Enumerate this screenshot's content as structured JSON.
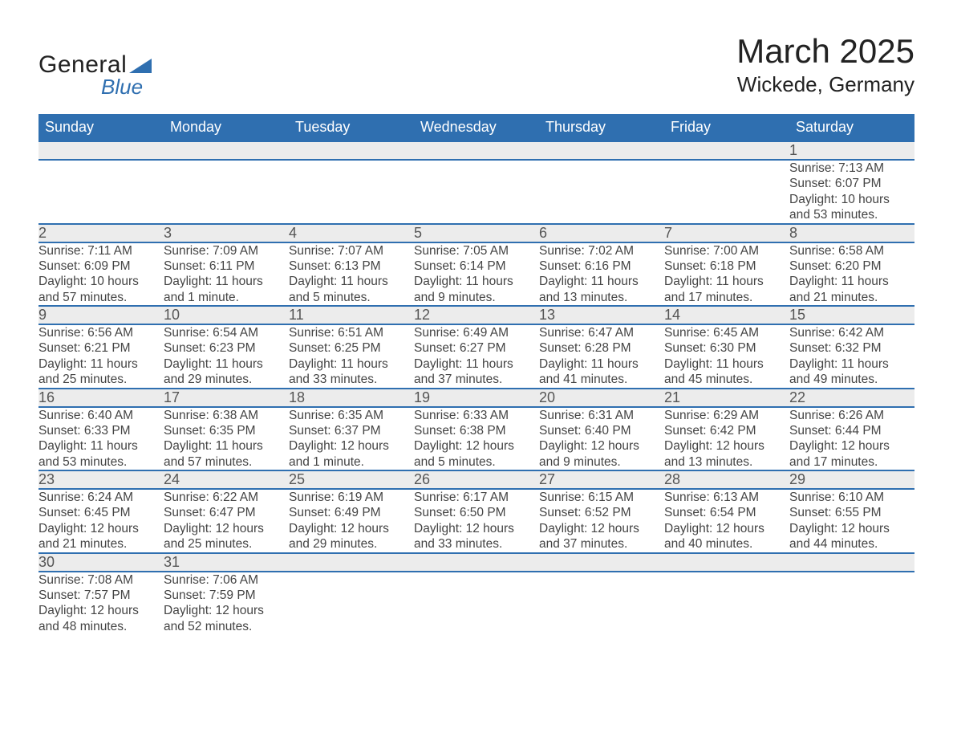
{
  "logo": {
    "line1": "General",
    "line2": "Blue",
    "triangle_color": "#2f6fb0"
  },
  "title": {
    "month": "March 2025",
    "location": "Wickede, Germany"
  },
  "colors": {
    "header_bg": "#2f6fb0",
    "header_fg": "#ffffff",
    "daynum_bg": "#ececec",
    "row_divider": "#2f6fb0",
    "text": "#444444"
  },
  "fonts": {
    "title_size": 42,
    "location_size": 26,
    "dayhead_size": 18,
    "daynum_size": 18,
    "detail_size": 15.5
  },
  "day_headers": [
    "Sunday",
    "Monday",
    "Tuesday",
    "Wednesday",
    "Thursday",
    "Friday",
    "Saturday"
  ],
  "weeks": [
    [
      null,
      null,
      null,
      null,
      null,
      null,
      {
        "n": "1",
        "sr": "Sunrise: 7:13 AM",
        "ss": "Sunset: 6:07 PM",
        "d1": "Daylight: 10 hours",
        "d2": "and 53 minutes."
      }
    ],
    [
      {
        "n": "2",
        "sr": "Sunrise: 7:11 AM",
        "ss": "Sunset: 6:09 PM",
        "d1": "Daylight: 10 hours",
        "d2": "and 57 minutes."
      },
      {
        "n": "3",
        "sr": "Sunrise: 7:09 AM",
        "ss": "Sunset: 6:11 PM",
        "d1": "Daylight: 11 hours",
        "d2": "and 1 minute."
      },
      {
        "n": "4",
        "sr": "Sunrise: 7:07 AM",
        "ss": "Sunset: 6:13 PM",
        "d1": "Daylight: 11 hours",
        "d2": "and 5 minutes."
      },
      {
        "n": "5",
        "sr": "Sunrise: 7:05 AM",
        "ss": "Sunset: 6:14 PM",
        "d1": "Daylight: 11 hours",
        "d2": "and 9 minutes."
      },
      {
        "n": "6",
        "sr": "Sunrise: 7:02 AM",
        "ss": "Sunset: 6:16 PM",
        "d1": "Daylight: 11 hours",
        "d2": "and 13 minutes."
      },
      {
        "n": "7",
        "sr": "Sunrise: 7:00 AM",
        "ss": "Sunset: 6:18 PM",
        "d1": "Daylight: 11 hours",
        "d2": "and 17 minutes."
      },
      {
        "n": "8",
        "sr": "Sunrise: 6:58 AM",
        "ss": "Sunset: 6:20 PM",
        "d1": "Daylight: 11 hours",
        "d2": "and 21 minutes."
      }
    ],
    [
      {
        "n": "9",
        "sr": "Sunrise: 6:56 AM",
        "ss": "Sunset: 6:21 PM",
        "d1": "Daylight: 11 hours",
        "d2": "and 25 minutes."
      },
      {
        "n": "10",
        "sr": "Sunrise: 6:54 AM",
        "ss": "Sunset: 6:23 PM",
        "d1": "Daylight: 11 hours",
        "d2": "and 29 minutes."
      },
      {
        "n": "11",
        "sr": "Sunrise: 6:51 AM",
        "ss": "Sunset: 6:25 PM",
        "d1": "Daylight: 11 hours",
        "d2": "and 33 minutes."
      },
      {
        "n": "12",
        "sr": "Sunrise: 6:49 AM",
        "ss": "Sunset: 6:27 PM",
        "d1": "Daylight: 11 hours",
        "d2": "and 37 minutes."
      },
      {
        "n": "13",
        "sr": "Sunrise: 6:47 AM",
        "ss": "Sunset: 6:28 PM",
        "d1": "Daylight: 11 hours",
        "d2": "and 41 minutes."
      },
      {
        "n": "14",
        "sr": "Sunrise: 6:45 AM",
        "ss": "Sunset: 6:30 PM",
        "d1": "Daylight: 11 hours",
        "d2": "and 45 minutes."
      },
      {
        "n": "15",
        "sr": "Sunrise: 6:42 AM",
        "ss": "Sunset: 6:32 PM",
        "d1": "Daylight: 11 hours",
        "d2": "and 49 minutes."
      }
    ],
    [
      {
        "n": "16",
        "sr": "Sunrise: 6:40 AM",
        "ss": "Sunset: 6:33 PM",
        "d1": "Daylight: 11 hours",
        "d2": "and 53 minutes."
      },
      {
        "n": "17",
        "sr": "Sunrise: 6:38 AM",
        "ss": "Sunset: 6:35 PM",
        "d1": "Daylight: 11 hours",
        "d2": "and 57 minutes."
      },
      {
        "n": "18",
        "sr": "Sunrise: 6:35 AM",
        "ss": "Sunset: 6:37 PM",
        "d1": "Daylight: 12 hours",
        "d2": "and 1 minute."
      },
      {
        "n": "19",
        "sr": "Sunrise: 6:33 AM",
        "ss": "Sunset: 6:38 PM",
        "d1": "Daylight: 12 hours",
        "d2": "and 5 minutes."
      },
      {
        "n": "20",
        "sr": "Sunrise: 6:31 AM",
        "ss": "Sunset: 6:40 PM",
        "d1": "Daylight: 12 hours",
        "d2": "and 9 minutes."
      },
      {
        "n": "21",
        "sr": "Sunrise: 6:29 AM",
        "ss": "Sunset: 6:42 PM",
        "d1": "Daylight: 12 hours",
        "d2": "and 13 minutes."
      },
      {
        "n": "22",
        "sr": "Sunrise: 6:26 AM",
        "ss": "Sunset: 6:44 PM",
        "d1": "Daylight: 12 hours",
        "d2": "and 17 minutes."
      }
    ],
    [
      {
        "n": "23",
        "sr": "Sunrise: 6:24 AM",
        "ss": "Sunset: 6:45 PM",
        "d1": "Daylight: 12 hours",
        "d2": "and 21 minutes."
      },
      {
        "n": "24",
        "sr": "Sunrise: 6:22 AM",
        "ss": "Sunset: 6:47 PM",
        "d1": "Daylight: 12 hours",
        "d2": "and 25 minutes."
      },
      {
        "n": "25",
        "sr": "Sunrise: 6:19 AM",
        "ss": "Sunset: 6:49 PM",
        "d1": "Daylight: 12 hours",
        "d2": "and 29 minutes."
      },
      {
        "n": "26",
        "sr": "Sunrise: 6:17 AM",
        "ss": "Sunset: 6:50 PM",
        "d1": "Daylight: 12 hours",
        "d2": "and 33 minutes."
      },
      {
        "n": "27",
        "sr": "Sunrise: 6:15 AM",
        "ss": "Sunset: 6:52 PM",
        "d1": "Daylight: 12 hours",
        "d2": "and 37 minutes."
      },
      {
        "n": "28",
        "sr": "Sunrise: 6:13 AM",
        "ss": "Sunset: 6:54 PM",
        "d1": "Daylight: 12 hours",
        "d2": "and 40 minutes."
      },
      {
        "n": "29",
        "sr": "Sunrise: 6:10 AM",
        "ss": "Sunset: 6:55 PM",
        "d1": "Daylight: 12 hours",
        "d2": "and 44 minutes."
      }
    ],
    [
      {
        "n": "30",
        "sr": "Sunrise: 7:08 AM",
        "ss": "Sunset: 7:57 PM",
        "d1": "Daylight: 12 hours",
        "d2": "and 48 minutes."
      },
      {
        "n": "31",
        "sr": "Sunrise: 7:06 AM",
        "ss": "Sunset: 7:59 PM",
        "d1": "Daylight: 12 hours",
        "d2": "and 52 minutes."
      },
      null,
      null,
      null,
      null,
      null
    ]
  ]
}
